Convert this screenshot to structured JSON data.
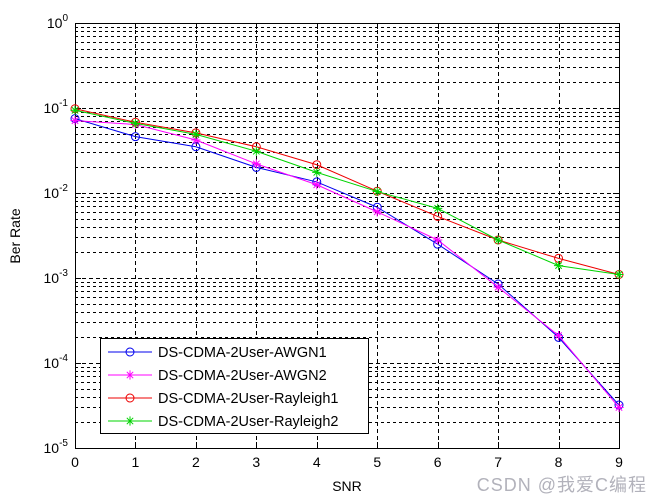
{
  "figure": {
    "background": "#ffffff",
    "watermark": {
      "text": "CSDN @我爱C编程",
      "color": "#b2b2bb"
    }
  },
  "chart_data": {
    "type": "line",
    "title": "",
    "xlabel": "SNR",
    "ylabel": "Ber Rate",
    "y_scale": "log",
    "grid": true,
    "minor_grid": true,
    "xlim": [
      0,
      9
    ],
    "ylim": [
      1e-05,
      1
    ],
    "x_ticks": [
      0,
      1,
      2,
      3,
      4,
      5,
      6,
      7,
      8,
      9
    ],
    "y_tick_exponents": [
      0,
      -1,
      -2,
      -3,
      -4,
      -5
    ],
    "legend_position": "inside-bottom-left",
    "x": [
      0,
      1,
      2,
      3,
      4,
      5,
      6,
      7,
      8,
      9
    ],
    "series": [
      {
        "name": "DS-CDMA-2User-AWGN1",
        "color": "#0000ee",
        "marker": "circle",
        "values": [
          0.075,
          0.046,
          0.035,
          0.02,
          0.0135,
          0.0068,
          0.0025,
          0.00085,
          0.0002,
          3.2e-05
        ]
      },
      {
        "name": "DS-CDMA-2User-AWGN2",
        "color": "#ff00ff",
        "marker": "asterisk",
        "values": [
          0.071,
          0.064,
          0.042,
          0.022,
          0.0125,
          0.006,
          0.0028,
          0.00078,
          0.00021,
          3e-05
        ]
      },
      {
        "name": "DS-CDMA-2User-Rayleigh1",
        "color": "#ee0000",
        "marker": "circle",
        "values": [
          0.098,
          0.068,
          0.051,
          0.035,
          0.0215,
          0.0105,
          0.0053,
          0.0028,
          0.0017,
          0.0011
        ]
      },
      {
        "name": "DS-CDMA-2User-Rayleigh2",
        "color": "#00d400",
        "marker": "asterisk",
        "values": [
          0.094,
          0.066,
          0.049,
          0.031,
          0.0175,
          0.0104,
          0.0066,
          0.0028,
          0.0014,
          0.0011
        ]
      }
    ],
    "axis_color": "#000000",
    "grid_color": "#000000"
  }
}
